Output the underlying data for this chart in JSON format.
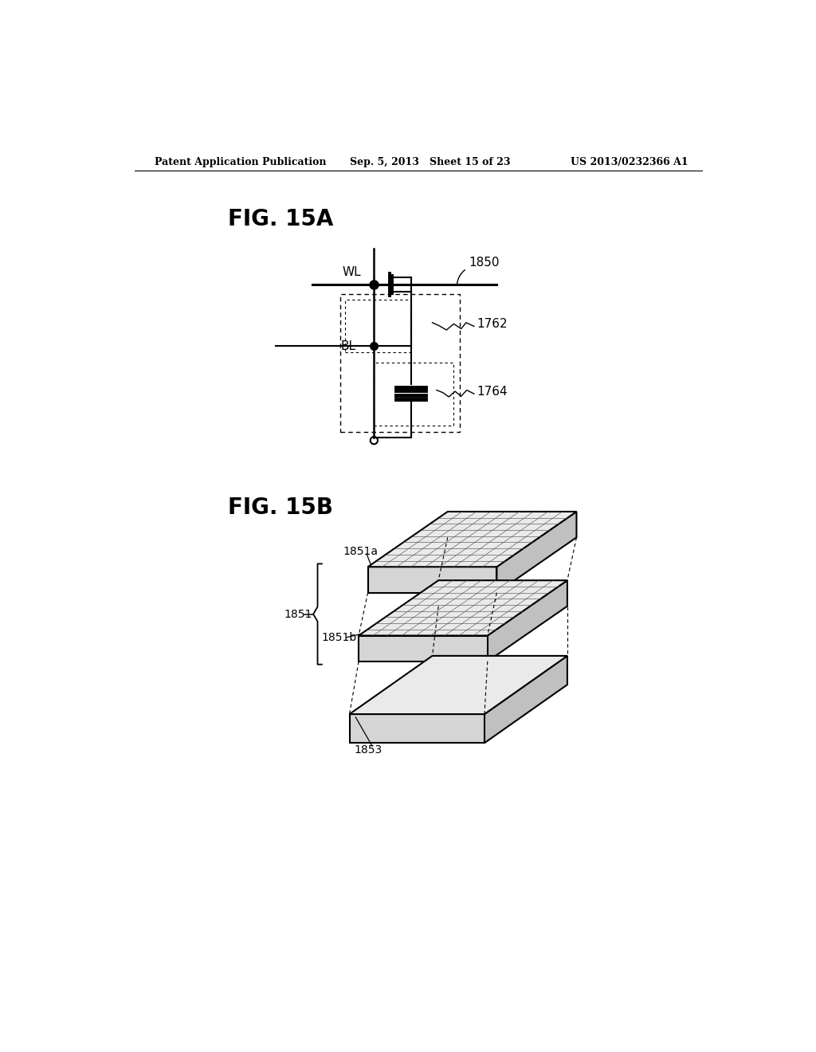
{
  "bg_color": "#ffffff",
  "header_left": "Patent Application Publication",
  "header_mid": "Sep. 5, 2013   Sheet 15 of 23",
  "header_right": "US 2013/0232366 A1",
  "fig15a_label": "FIG. 15A",
  "fig15b_label": "FIG. 15B",
  "label_1850": "1850",
  "label_1762": "1762",
  "label_1764": "1764",
  "label_WL": "WL",
  "label_BL": "BL",
  "label_1851a": "1851a",
  "label_1851": "1851",
  "label_1851b": "1851b",
  "label_1853": "1853"
}
